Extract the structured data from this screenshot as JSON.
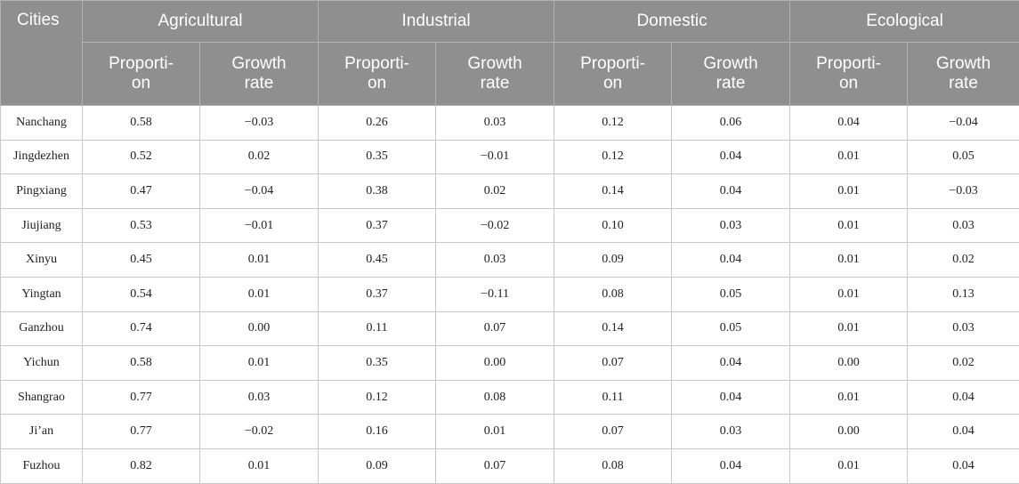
{
  "table": {
    "header": {
      "cities": "Cities",
      "groups": [
        "Agricultural",
        "Industrial",
        "Domestic",
        "Ecological"
      ],
      "proportion_line1": "Proporti-",
      "proportion_line2": "on",
      "growth_line1": "Growth",
      "growth_line2": "rate"
    },
    "rows": [
      {
        "city": "Nanchang",
        "values": [
          "0.58",
          "−0.03",
          "0.26",
          "0.03",
          "0.12",
          "0.06",
          "0.04",
          "−0.04"
        ]
      },
      {
        "city": "Jingdezhen",
        "values": [
          "0.52",
          "0.02",
          "0.35",
          "−0.01",
          "0.12",
          "0.04",
          "0.01",
          "0.05"
        ]
      },
      {
        "city": "Pingxiang",
        "values": [
          "0.47",
          "−0.04",
          "0.38",
          "0.02",
          "0.14",
          "0.04",
          "0.01",
          "−0.03"
        ]
      },
      {
        "city": "Jiujiang",
        "values": [
          "0.53",
          "−0.01",
          "0.37",
          "−0.02",
          "0.10",
          "0.03",
          "0.01",
          "0.03"
        ]
      },
      {
        "city": "Xinyu",
        "values": [
          "0.45",
          "0.01",
          "0.45",
          "0.03",
          "0.09",
          "0.04",
          "0.01",
          "0.02"
        ]
      },
      {
        "city": "Yingtan",
        "values": [
          "0.54",
          "0.01",
          "0.37",
          "−0.11",
          "0.08",
          "0.05",
          "0.01",
          "0.13"
        ]
      },
      {
        "city": "Ganzhou",
        "values": [
          "0.74",
          "0.00",
          "0.11",
          "0.07",
          "0.14",
          "0.05",
          "0.01",
          "0.03"
        ]
      },
      {
        "city": "Yichun",
        "values": [
          "0.58",
          "0.01",
          "0.35",
          "0.00",
          "0.07",
          "0.04",
          "0.00",
          "0.02"
        ]
      },
      {
        "city": "Shangrao",
        "values": [
          "0.77",
          "0.03",
          "0.12",
          "0.08",
          "0.11",
          "0.04",
          "0.01",
          "0.04"
        ]
      },
      {
        "city": "Ji’an",
        "values": [
          "0.77",
          "−0.02",
          "0.16",
          "0.01",
          "0.07",
          "0.03",
          "0.00",
          "0.04"
        ]
      },
      {
        "city": "Fuzhou",
        "values": [
          "0.82",
          "0.01",
          "0.09",
          "0.07",
          "0.08",
          "0.04",
          "0.01",
          "0.04"
        ]
      }
    ]
  }
}
